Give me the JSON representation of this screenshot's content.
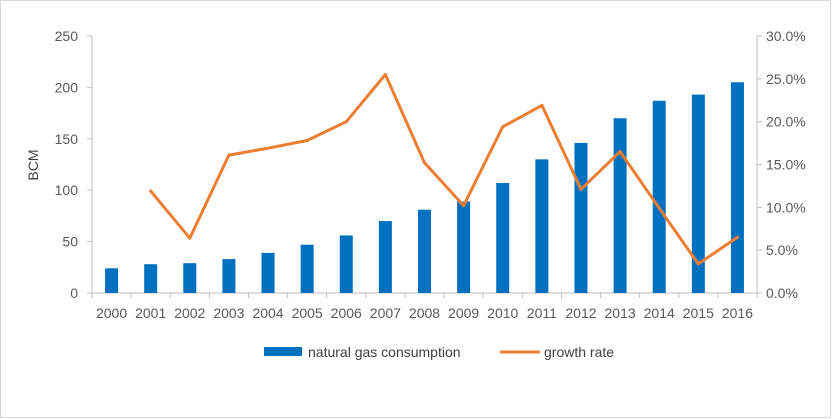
{
  "chart_data": {
    "type": "bar",
    "categories": [
      "2000",
      "2001",
      "2002",
      "2003",
      "2004",
      "2005",
      "2006",
      "2007",
      "2008",
      "2009",
      "2010",
      "2011",
      "2012",
      "2013",
      "2014",
      "2015",
      "2016"
    ],
    "series": [
      {
        "name": "natural gas consumption",
        "type": "bar",
        "axis": "left",
        "color": "#0070C0",
        "values": [
          24,
          28,
          29,
          33,
          39,
          47,
          56,
          70,
          81,
          89,
          107,
          130,
          146,
          170,
          187,
          193,
          205
        ]
      },
      {
        "name": "growth rate",
        "type": "line",
        "axis": "right",
        "color": "#ED7D31",
        "values": [
          null,
          0.119,
          0.064,
          0.161,
          0.169,
          0.178,
          0.2,
          0.255,
          0.152,
          0.102,
          0.194,
          0.219,
          0.121,
          0.165,
          0.099,
          0.034,
          0.065
        ]
      }
    ],
    "title": "",
    "xlabel": "",
    "ylabel": "BCM",
    "ylim": [
      0,
      250
    ],
    "yticks": [
      "0",
      "50",
      "100",
      "150",
      "200",
      "250"
    ],
    "y2lim": [
      0,
      0.3
    ],
    "y2ticks": [
      "0.0%",
      "5.0%",
      "10.0%",
      "15.0%",
      "20.0%",
      "25.0%",
      "30.0%"
    ],
    "legend_position": "bottom",
    "grid": false
  }
}
